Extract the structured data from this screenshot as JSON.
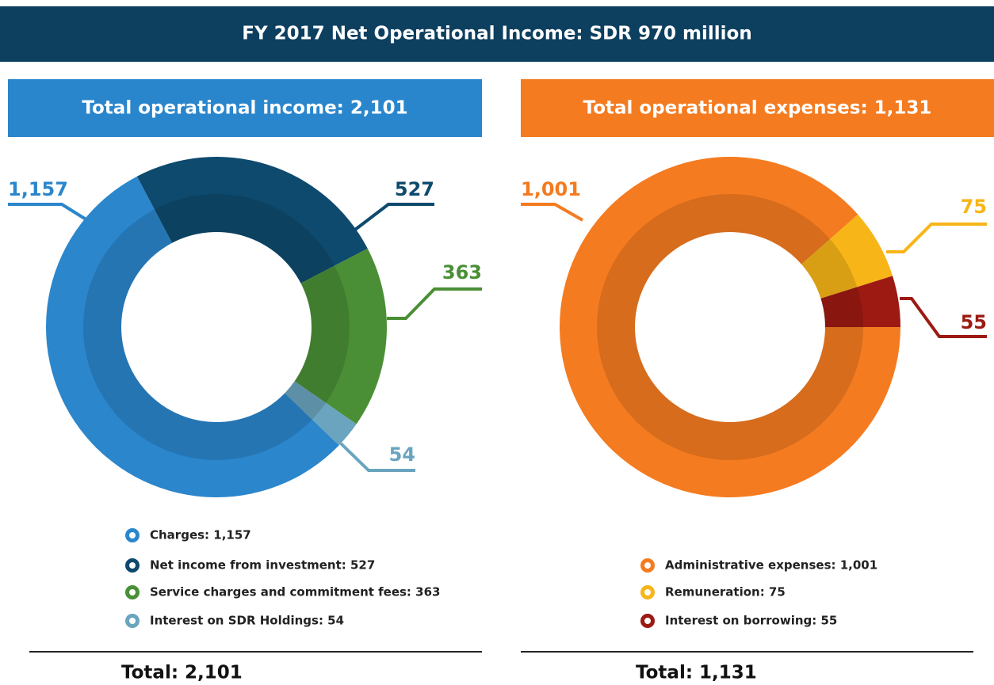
{
  "title": "FY 2017 Net Operational Income: SDR 970 million",
  "chart_data": [
    {
      "type": "donut",
      "title": "Total operational income: 2,101",
      "categories": [
        "Charges: 1,157",
        "Net income from investment: 527",
        "Service charges and commitment fees: 363",
        "Interest on SDR Holdings: 54"
      ],
      "values": [
        1157,
        527,
        363,
        54
      ],
      "value_labels": [
        "1,157",
        "527",
        "363",
        "54"
      ],
      "colors": [
        "#2b86cc",
        "#0e4a6e",
        "#4a8f35",
        "#6aa4bf"
      ],
      "header_color": "#2a86cc",
      "total_label": "Total: 2,101"
    },
    {
      "type": "donut",
      "title": "Total operational expenses: 1,131",
      "categories": [
        "Administrative expenses: 1,001",
        "Remuneration: 75",
        "Interest on borrowing: 55"
      ],
      "values": [
        1001,
        75,
        55
      ],
      "value_labels": [
        "1,001",
        "75",
        "55"
      ],
      "colors": [
        "#f47b20",
        "#f7b517",
        "#9c1a12"
      ],
      "header_color": "#f47b20",
      "total_label": "Total: 1,131"
    }
  ]
}
